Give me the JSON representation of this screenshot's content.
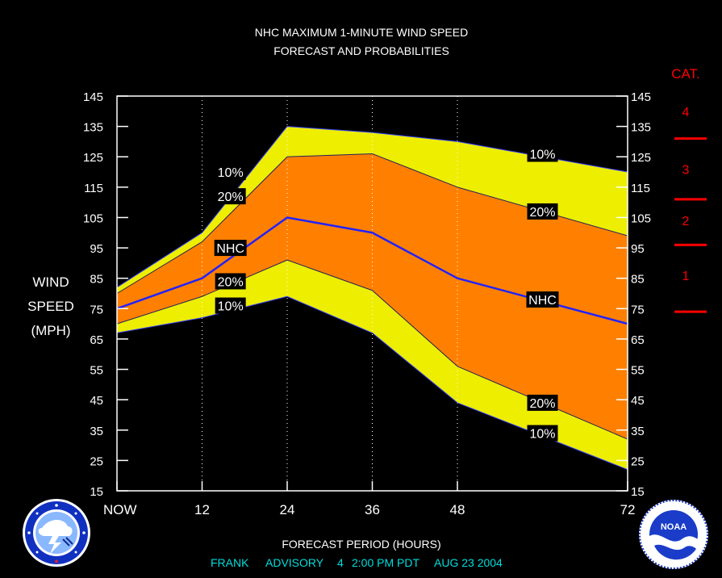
{
  "chart_data": {
    "type": "area",
    "title": "NHC MAXIMUM 1-MINUTE WIND SPEED",
    "subtitle": "FORECAST AND PROBABILITIES",
    "xlabel": "FORECAST PERIOD (HOURS)",
    "ylabel_lines": [
      "WIND",
      "SPEED",
      "(MPH)"
    ],
    "x_ticks": [
      {
        "x": 0,
        "label": "NOW"
      },
      {
        "x": 12,
        "label": "12"
      },
      {
        "x": 24,
        "label": "24"
      },
      {
        "x": 36,
        "label": "36"
      },
      {
        "x": 48,
        "label": "48"
      },
      {
        "x": 72,
        "label": "72"
      }
    ],
    "xlim": [
      0,
      72
    ],
    "ylim": [
      15,
      145
    ],
    "y_ticks": [
      15,
      25,
      35,
      45,
      55,
      65,
      75,
      85,
      95,
      105,
      115,
      125,
      135,
      145
    ],
    "x": [
      0,
      12,
      24,
      36,
      48,
      72
    ],
    "series": [
      {
        "name": "10%",
        "role": "upper_10",
        "values": [
          82,
          100,
          135,
          133,
          130,
          120
        ]
      },
      {
        "name": "20%",
        "role": "upper_20",
        "values": [
          80,
          97,
          125,
          126,
          115,
          99
        ]
      },
      {
        "name": "NHC",
        "role": "nhc",
        "values": [
          75,
          85,
          105,
          100,
          85,
          70
        ]
      },
      {
        "name": "20%",
        "role": "lower_20",
        "values": [
          70,
          79,
          91,
          81,
          56,
          32
        ]
      },
      {
        "name": "10%",
        "role": "lower_10",
        "values": [
          67,
          72,
          79,
          67,
          44,
          22
        ]
      }
    ],
    "band_labels": [
      {
        "text": "10%",
        "x": 16,
        "y": 120
      },
      {
        "text": "20%",
        "x": 16,
        "y": 112
      },
      {
        "text": "NHC",
        "x": 16,
        "y": 95
      },
      {
        "text": "20%",
        "x": 16,
        "y": 84
      },
      {
        "text": "10%",
        "x": 16,
        "y": 76
      },
      {
        "text": "10%",
        "x": 60,
        "y": 126
      },
      {
        "text": "20%",
        "x": 60,
        "y": 107
      },
      {
        "text": "NHC",
        "x": 60,
        "y": 78
      },
      {
        "text": "20%",
        "x": 60,
        "y": 44
      },
      {
        "text": "10%",
        "x": 60,
        "y": 34
      }
    ],
    "categories": {
      "header": "CAT.",
      "labels": [
        {
          "label": "4",
          "y": 140
        },
        {
          "label": "3",
          "y": 121
        },
        {
          "label": "2",
          "y": 104
        },
        {
          "label": "1",
          "y": 86
        }
      ],
      "boundaries": [
        131,
        111,
        96,
        74
      ]
    },
    "colors": {
      "outer_band": "#eeee00",
      "inner_band": "#ff8000",
      "nhc_line": "#2222ff",
      "grid": "#ffffff",
      "category": "#ff0000",
      "footer": "#00dddd"
    },
    "grid": "dotted vertical"
  },
  "footer": {
    "storm": "FRANK",
    "advisory": "ADVISORY",
    "number": "4",
    "time": "2:00 PM PDT",
    "date": "AUG 23 2004"
  },
  "logos": {
    "left": "national-weather-service",
    "right": "noaa"
  }
}
